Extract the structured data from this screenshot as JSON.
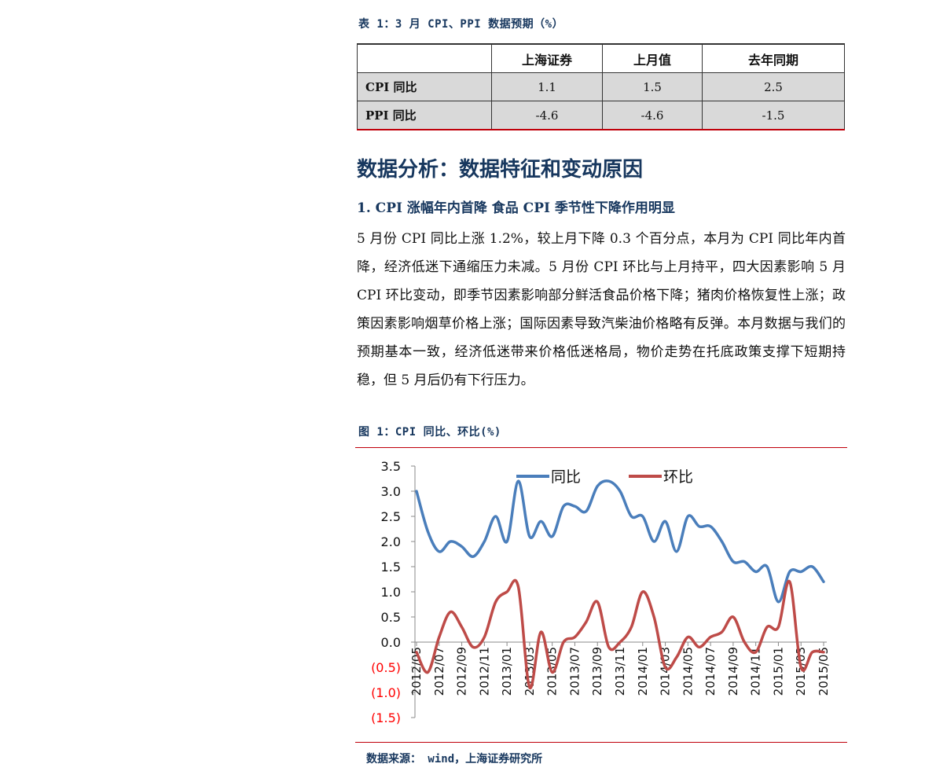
{
  "table": {
    "caption": "表 1：3 月 CPI、PPI 数据预期（%）",
    "headers": [
      "",
      "上海证券",
      "上月值",
      "去年同期"
    ],
    "rows": [
      {
        "label": "CPI 同比",
        "values": [
          "1.1",
          "1.5",
          "2.5"
        ]
      },
      {
        "label": "PPI 同比",
        "values": [
          "-4.6",
          "-4.6",
          "-1.5"
        ]
      }
    ]
  },
  "section_title": "数据分析：数据特征和变动原因",
  "subsection_title": "1. CPI 涨幅年内首降 食品 CPI 季节性下降作用明显",
  "paragraph": "5 月份 CPI 同比上涨 1.2%，较上月下降 0.3 个百分点，本月为 CPI 同比年内首降，经济低迷下通缩压力未减。5 月份 CPI 环比与上月持平，四大因素影响 5 月 CPI 环比变动，即季节因素影响部分鲜活食品价格下降；猪肉价格恢复性上涨；政策因素影响烟草价格上涨；国际因素导致汽柴油价格略有反弹。本月数据与我们的预期基本一致，经济低迷带来价格低迷格局，物价走势在托底政策支撑下短期持稳，但 5 月后仍有下行压力。",
  "figure_caption": "图 1：CPI 同比、环比(%)",
  "source": "数据来源： wind，上海证券研究所",
  "colors": {
    "yoy": "#4a7ebb",
    "mom": "#be4b48",
    "negative_tick": "#ff0000",
    "accent": "#c0000a"
  },
  "chart_data": {
    "type": "line",
    "ylim": [
      -1.5,
      3.5
    ],
    "y_ticks": [
      "3.5",
      "3.0",
      "2.5",
      "2.0",
      "1.5",
      "1.0",
      "0.5",
      "0.0",
      "(0.5)",
      "(1.0)",
      "(1.5)"
    ],
    "x_tick_labels": [
      "2012/05",
      "2012/07",
      "2012/09",
      "2012/11",
      "2013/01",
      "2013/03",
      "2013/05",
      "2013/07",
      "2013/09",
      "2013/11",
      "2014/01",
      "2014/03",
      "2014/05",
      "2014/07",
      "2014/09",
      "2014/11",
      "2015/01",
      "2015/03",
      "2015/05"
    ],
    "legend_position": "top",
    "series": [
      {
        "name": "同比",
        "values": [
          3.0,
          2.2,
          1.8,
          2.0,
          1.9,
          1.7,
          2.0,
          2.5,
          2.0,
          3.2,
          2.1,
          2.4,
          2.1,
          2.7,
          2.7,
          2.6,
          3.1,
          3.2,
          3.0,
          2.5,
          2.5,
          2.0,
          2.4,
          1.8,
          2.5,
          2.3,
          2.3,
          2.0,
          1.6,
          1.6,
          1.4,
          1.5,
          0.8,
          1.4,
          1.4,
          1.5,
          1.2
        ]
      },
      {
        "name": "环比",
        "values": [
          -0.2,
          -0.6,
          0.1,
          0.6,
          0.3,
          -0.1,
          0.1,
          0.8,
          1.0,
          1.1,
          -0.9,
          0.2,
          -0.6,
          0.0,
          0.1,
          0.4,
          0.8,
          -0.1,
          0.0,
          0.3,
          1.0,
          0.5,
          -0.5,
          -0.3,
          0.1,
          -0.1,
          0.1,
          0.2,
          0.5,
          0.0,
          -0.2,
          0.3,
          0.3,
          1.2,
          -0.5,
          -0.2,
          -0.2
        ]
      }
    ]
  }
}
